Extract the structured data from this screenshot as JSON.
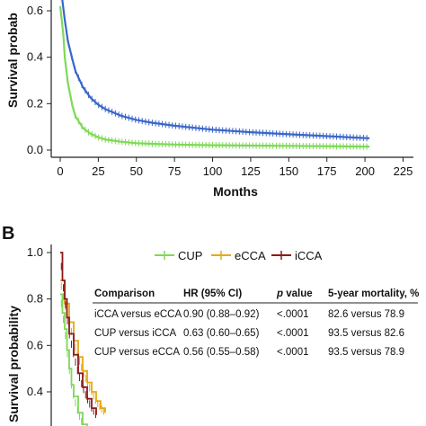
{
  "chart_data": [
    {
      "panel_label": "",
      "type": "line",
      "xlabel": "Months",
      "ylabel": "Survival probab",
      "xlim": [
        0,
        225
      ],
      "ylim": [
        0,
        0.6
      ],
      "x_ticks": [
        "0",
        "25",
        "50",
        "75",
        "100",
        "125",
        "150",
        "175",
        "200",
        "225"
      ],
      "y_ticks": [
        "0.0",
        "0.2",
        "0.4",
        "0.6"
      ],
      "series": [
        {
          "color": "#3a66c8",
          "x": [
            0,
            3,
            5,
            8,
            10,
            15,
            20,
            25,
            30,
            40,
            50,
            60,
            75,
            100,
            125,
            150,
            175,
            200,
            203
          ],
          "y": [
            0.72,
            0.56,
            0.47,
            0.39,
            0.34,
            0.27,
            0.225,
            0.195,
            0.175,
            0.148,
            0.13,
            0.118,
            0.105,
            0.088,
            0.077,
            0.068,
            0.06,
            0.052,
            0.051
          ]
        },
        {
          "color": "#7ed957",
          "x": [
            0,
            2,
            3,
            5,
            8,
            10,
            15,
            20,
            25,
            30,
            40,
            50,
            60,
            75,
            100,
            150,
            200,
            203
          ],
          "y": [
            0.62,
            0.5,
            0.4,
            0.29,
            0.19,
            0.145,
            0.095,
            0.07,
            0.055,
            0.045,
            0.036,
            0.03,
            0.027,
            0.024,
            0.021,
            0.018,
            0.015,
            0.015
          ]
        }
      ]
    },
    {
      "panel_label": "B",
      "type": "line",
      "xlabel": "",
      "ylabel": "Survival probability",
      "ylim": [
        0,
        1.0
      ],
      "y_ticks": [
        "0.4",
        "0.6",
        "0.8",
        "1.0"
      ],
      "legend_position": "top-right",
      "series": [
        {
          "name": "CUP",
          "color": "#7ed957",
          "x": [
            0,
            1,
            2,
            3,
            4,
            5,
            6,
            8,
            10,
            12
          ],
          "y": [
            0.82,
            0.74,
            0.67,
            0.58,
            0.5,
            0.43,
            0.38,
            0.31,
            0.26,
            0.22
          ]
        },
        {
          "name": "eCCA",
          "color": "#e6a817",
          "x": [
            0,
            2,
            4,
            6,
            8,
            10,
            12,
            14,
            16,
            18,
            20
          ],
          "y": [
            0.88,
            0.78,
            0.7,
            0.62,
            0.55,
            0.49,
            0.44,
            0.4,
            0.36,
            0.33,
            0.31
          ]
        },
        {
          "name": "iCCA",
          "color": "#8b1a1a",
          "x": [
            0,
            1,
            2,
            3,
            4,
            6,
            8,
            10,
            12,
            14,
            16
          ],
          "y": [
            1.0,
            0.88,
            0.8,
            0.72,
            0.65,
            0.56,
            0.48,
            0.42,
            0.37,
            0.33,
            0.3
          ]
        }
      ],
      "table": {
        "headers": [
          "Comparison",
          "HR (95% CI)",
          "p value",
          "5-year mortality, %"
        ],
        "header_p_italic": "p",
        "header_p_rest": " value",
        "rows": [
          [
            "iCCA versus eCCA",
            "0.90 (0.88–0.92)",
            "<.0001",
            "82.6 versus 78.9"
          ],
          [
            "CUP versus iCCA",
            "0.63 (0.60–0.65)",
            "<.0001",
            "93.5 versus 82.6"
          ],
          [
            "CUP versus eCCA",
            "0.56 (0.55–0.58)",
            "<.0001",
            "93.5 versus 78.9"
          ]
        ]
      }
    }
  ]
}
